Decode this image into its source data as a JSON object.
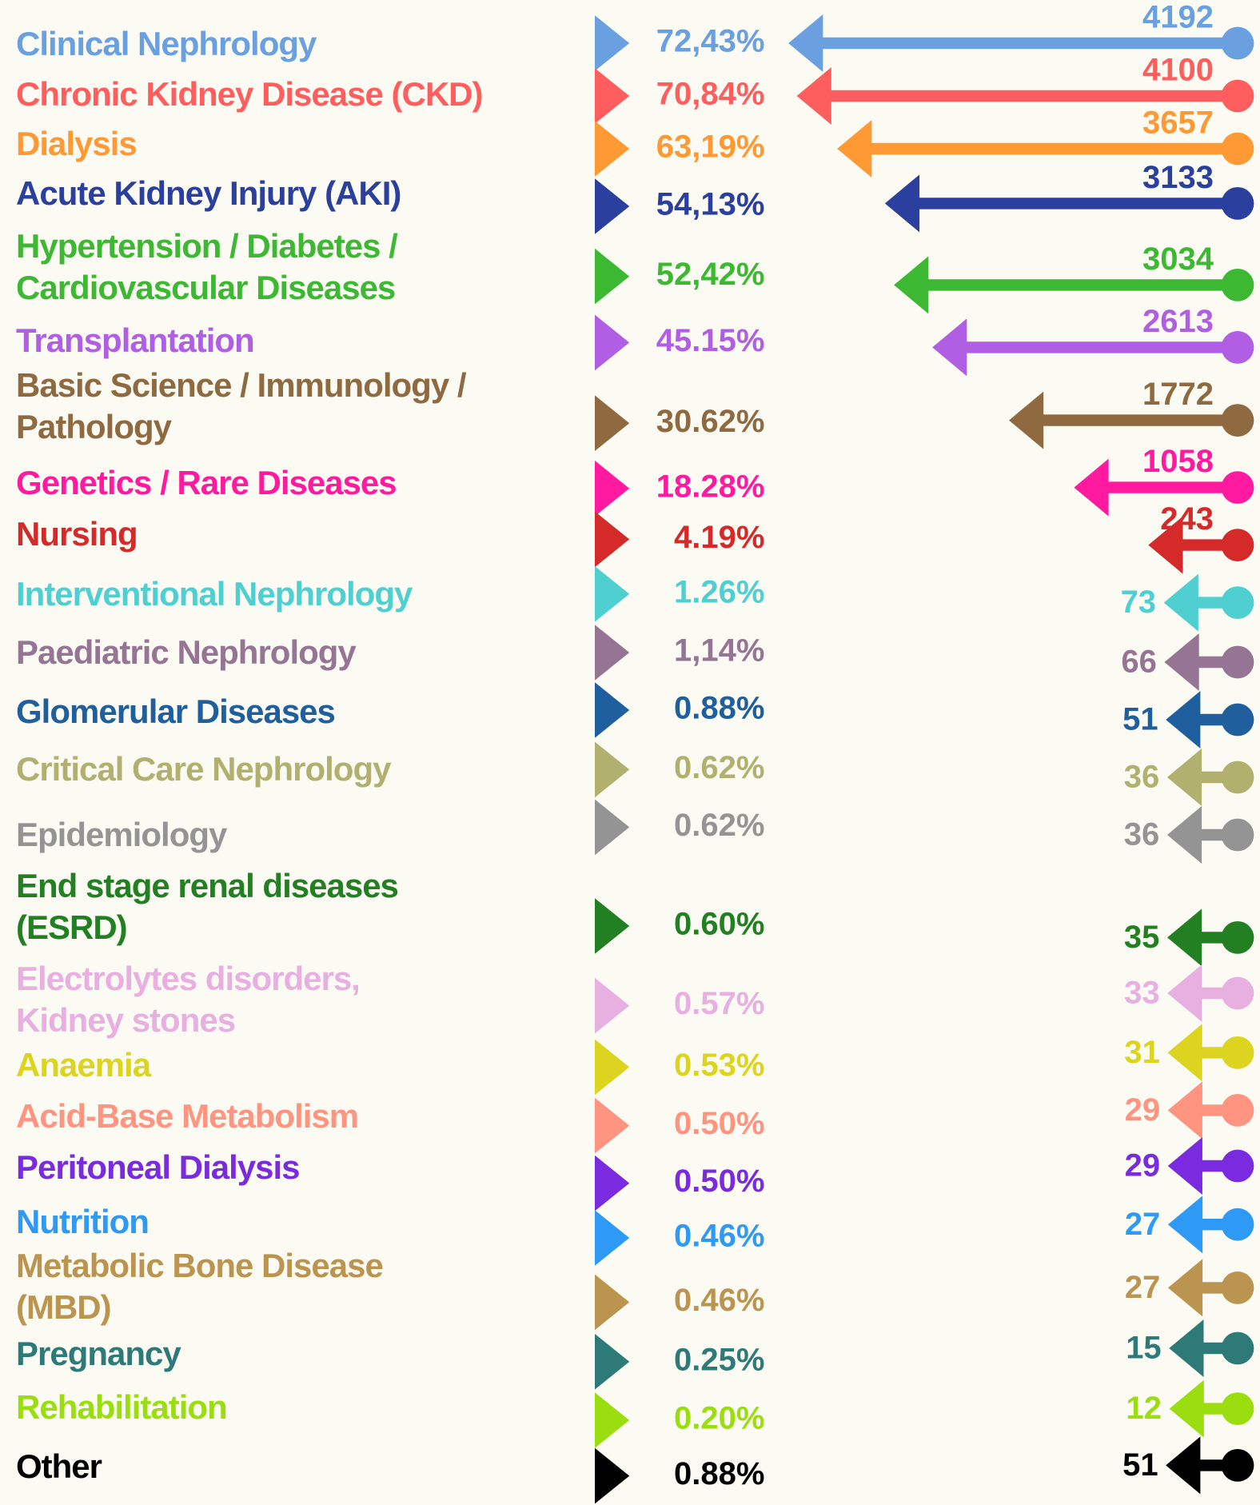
{
  "chart_data": {
    "type": "arrow",
    "categories": [
      "Clinical Nephrology",
      "Chronic Kidney Disease (CKD)",
      "Dialysis",
      "Acute Kidney Injury (AKI)",
      "Hypertension / Diabetes / Cardiovascular Diseases",
      "Transplantation",
      "Basic Science / Immunology / Pathology",
      "Genetics / Rare Diseases",
      "Nursing",
      "Interventional Nephrology",
      "Paediatric Nephrology",
      "Glomerular Diseases",
      "Critical Care Nephrology",
      "Epidemiology",
      "End stage renal diseases (ESRD)",
      "Electrolytes disorders, Kidney stones",
      "Anaemia",
      "Acid-Base Metabolism",
      "Peritoneal Dialysis",
      "Nutrition",
      "Metabolic Bone Disease (MBD)",
      "Pregnancy",
      "Rehabilitation",
      "Other"
    ],
    "colors": [
      "#6a9fe0",
      "#ff5e5e",
      "#ff9933",
      "#2b3f9e",
      "#3cb832",
      "#b05ee3",
      "#8f6a40",
      "#ff1aa0",
      "#d42a2a",
      "#4fcfd0",
      "#967494",
      "#1f5f9e",
      "#b2b06e",
      "#949494",
      "#238022",
      "#e8b0e0",
      "#dcd41e",
      "#ff9580",
      "#7a2be0",
      "#2f9af5",
      "#bb9550",
      "#2e7a78",
      "#9ade10",
      "#000000"
    ],
    "percent": {
      "values": [
        72.43,
        70.84,
        63.19,
        54.13,
        52.42,
        45.15,
        30.62,
        18.28,
        4.19,
        1.26,
        1.14,
        0.88,
        0.62,
        0.62,
        0.6,
        0.57,
        0.53,
        0.5,
        0.5,
        0.46,
        0.46,
        0.25,
        0.2,
        0.88
      ],
      "value_labels": [
        "72,43%",
        "70,84%",
        "63,19%",
        "54,13%",
        "52,42%",
        "45.15%",
        "30.62%",
        "18.28%",
        "4.19%",
        "1.26%",
        "1,14%",
        "0.88%",
        "0.62%",
        "0.62%",
        "0.60%",
        "0.57%",
        "0.53%",
        "0.50%",
        "0.50%",
        "0.46%",
        "0.46%",
        "0.25%",
        "0.20%",
        "0.88%"
      ]
    },
    "counts": [
      4192,
      4100,
      3657,
      3133,
      3034,
      2613,
      1772,
      1058,
      243,
      73,
      66,
      51,
      36,
      36,
      35,
      33,
      31,
      29,
      29,
      27,
      27,
      15,
      12,
      51
    ]
  }
}
